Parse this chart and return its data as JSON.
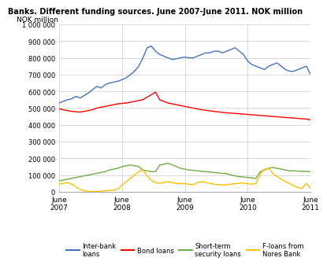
{
  "title": "Banks. Different funding sources. June 2007-June 2011. NOK million",
  "ylabel": "NOK million",
  "ylim": [
    0,
    1000000
  ],
  "yticks": [
    0,
    100000,
    200000,
    300000,
    400000,
    500000,
    600000,
    700000,
    800000,
    900000,
    1000000
  ],
  "ytick_labels": [
    "0",
    "100 000",
    "200 000",
    "300 000",
    "400 000",
    "500 000",
    "600 000",
    "700 000",
    "800 000",
    "900 000",
    "1 000 000"
  ],
  "xtick_positions": [
    0,
    12,
    24,
    36,
    48
  ],
  "xtick_labels": [
    "June\n2007",
    "June\n2008",
    "June\n2009",
    "June\n2010",
    "June\n2011"
  ],
  "colors": {
    "inter_bank": "#4472C4",
    "bond": "#FF0000",
    "short_term": "#70AD47",
    "f_loans": "#FFC000"
  },
  "inter_bank": [
    530000,
    540000,
    550000,
    555000,
    570000,
    560000,
    575000,
    590000,
    610000,
    630000,
    620000,
    640000,
    650000,
    655000,
    660000,
    670000,
    680000,
    700000,
    720000,
    750000,
    800000,
    860000,
    870000,
    840000,
    820000,
    810000,
    800000,
    790000,
    795000,
    800000,
    805000,
    800000,
    800000,
    810000,
    820000,
    830000,
    830000,
    840000,
    840000,
    830000,
    840000,
    850000,
    860000,
    840000,
    820000,
    780000,
    760000,
    750000,
    740000,
    730000,
    750000,
    760000,
    770000,
    750000,
    730000,
    720000,
    720000,
    730000,
    740000,
    750000,
    700000
  ],
  "bond": [
    495000,
    490000,
    485000,
    480000,
    478000,
    476000,
    480000,
    485000,
    490000,
    500000,
    505000,
    510000,
    515000,
    520000,
    525000,
    528000,
    530000,
    535000,
    540000,
    545000,
    550000,
    565000,
    580000,
    595000,
    550000,
    540000,
    530000,
    525000,
    520000,
    515000,
    510000,
    505000,
    500000,
    495000,
    490000,
    487000,
    483000,
    480000,
    477000,
    474000,
    472000,
    470000,
    468000,
    466000,
    464000,
    462000,
    460000,
    458000,
    456000,
    454000,
    452000,
    450000,
    448000,
    446000,
    444000,
    442000,
    440000,
    438000,
    436000,
    434000,
    430000
  ],
  "short_term": [
    65000,
    70000,
    75000,
    80000,
    85000,
    90000,
    95000,
    100000,
    105000,
    110000,
    115000,
    120000,
    130000,
    135000,
    140000,
    150000,
    155000,
    160000,
    155000,
    150000,
    130000,
    125000,
    120000,
    120000,
    160000,
    165000,
    170000,
    160000,
    150000,
    140000,
    135000,
    130000,
    128000,
    125000,
    122000,
    120000,
    118000,
    115000,
    112000,
    110000,
    108000,
    100000,
    95000,
    90000,
    88000,
    85000,
    83000,
    80000,
    120000,
    130000,
    140000,
    145000,
    140000,
    135000,
    130000,
    125000,
    125000,
    123000,
    122000,
    122000,
    120000
  ],
  "f_loans": [
    45000,
    50000,
    55000,
    45000,
    30000,
    15000,
    5000,
    2000,
    1000,
    2000,
    3000,
    5000,
    8000,
    10000,
    15000,
    40000,
    60000,
    80000,
    100000,
    120000,
    130000,
    95000,
    70000,
    55000,
    50000,
    55000,
    60000,
    55000,
    50000,
    50000,
    48000,
    45000,
    42000,
    55000,
    60000,
    55000,
    50000,
    45000,
    43000,
    40000,
    42000,
    45000,
    48000,
    50000,
    52000,
    48000,
    45000,
    50000,
    105000,
    135000,
    140000,
    110000,
    90000,
    75000,
    60000,
    50000,
    35000,
    25000,
    20000,
    50000,
    20000
  ]
}
